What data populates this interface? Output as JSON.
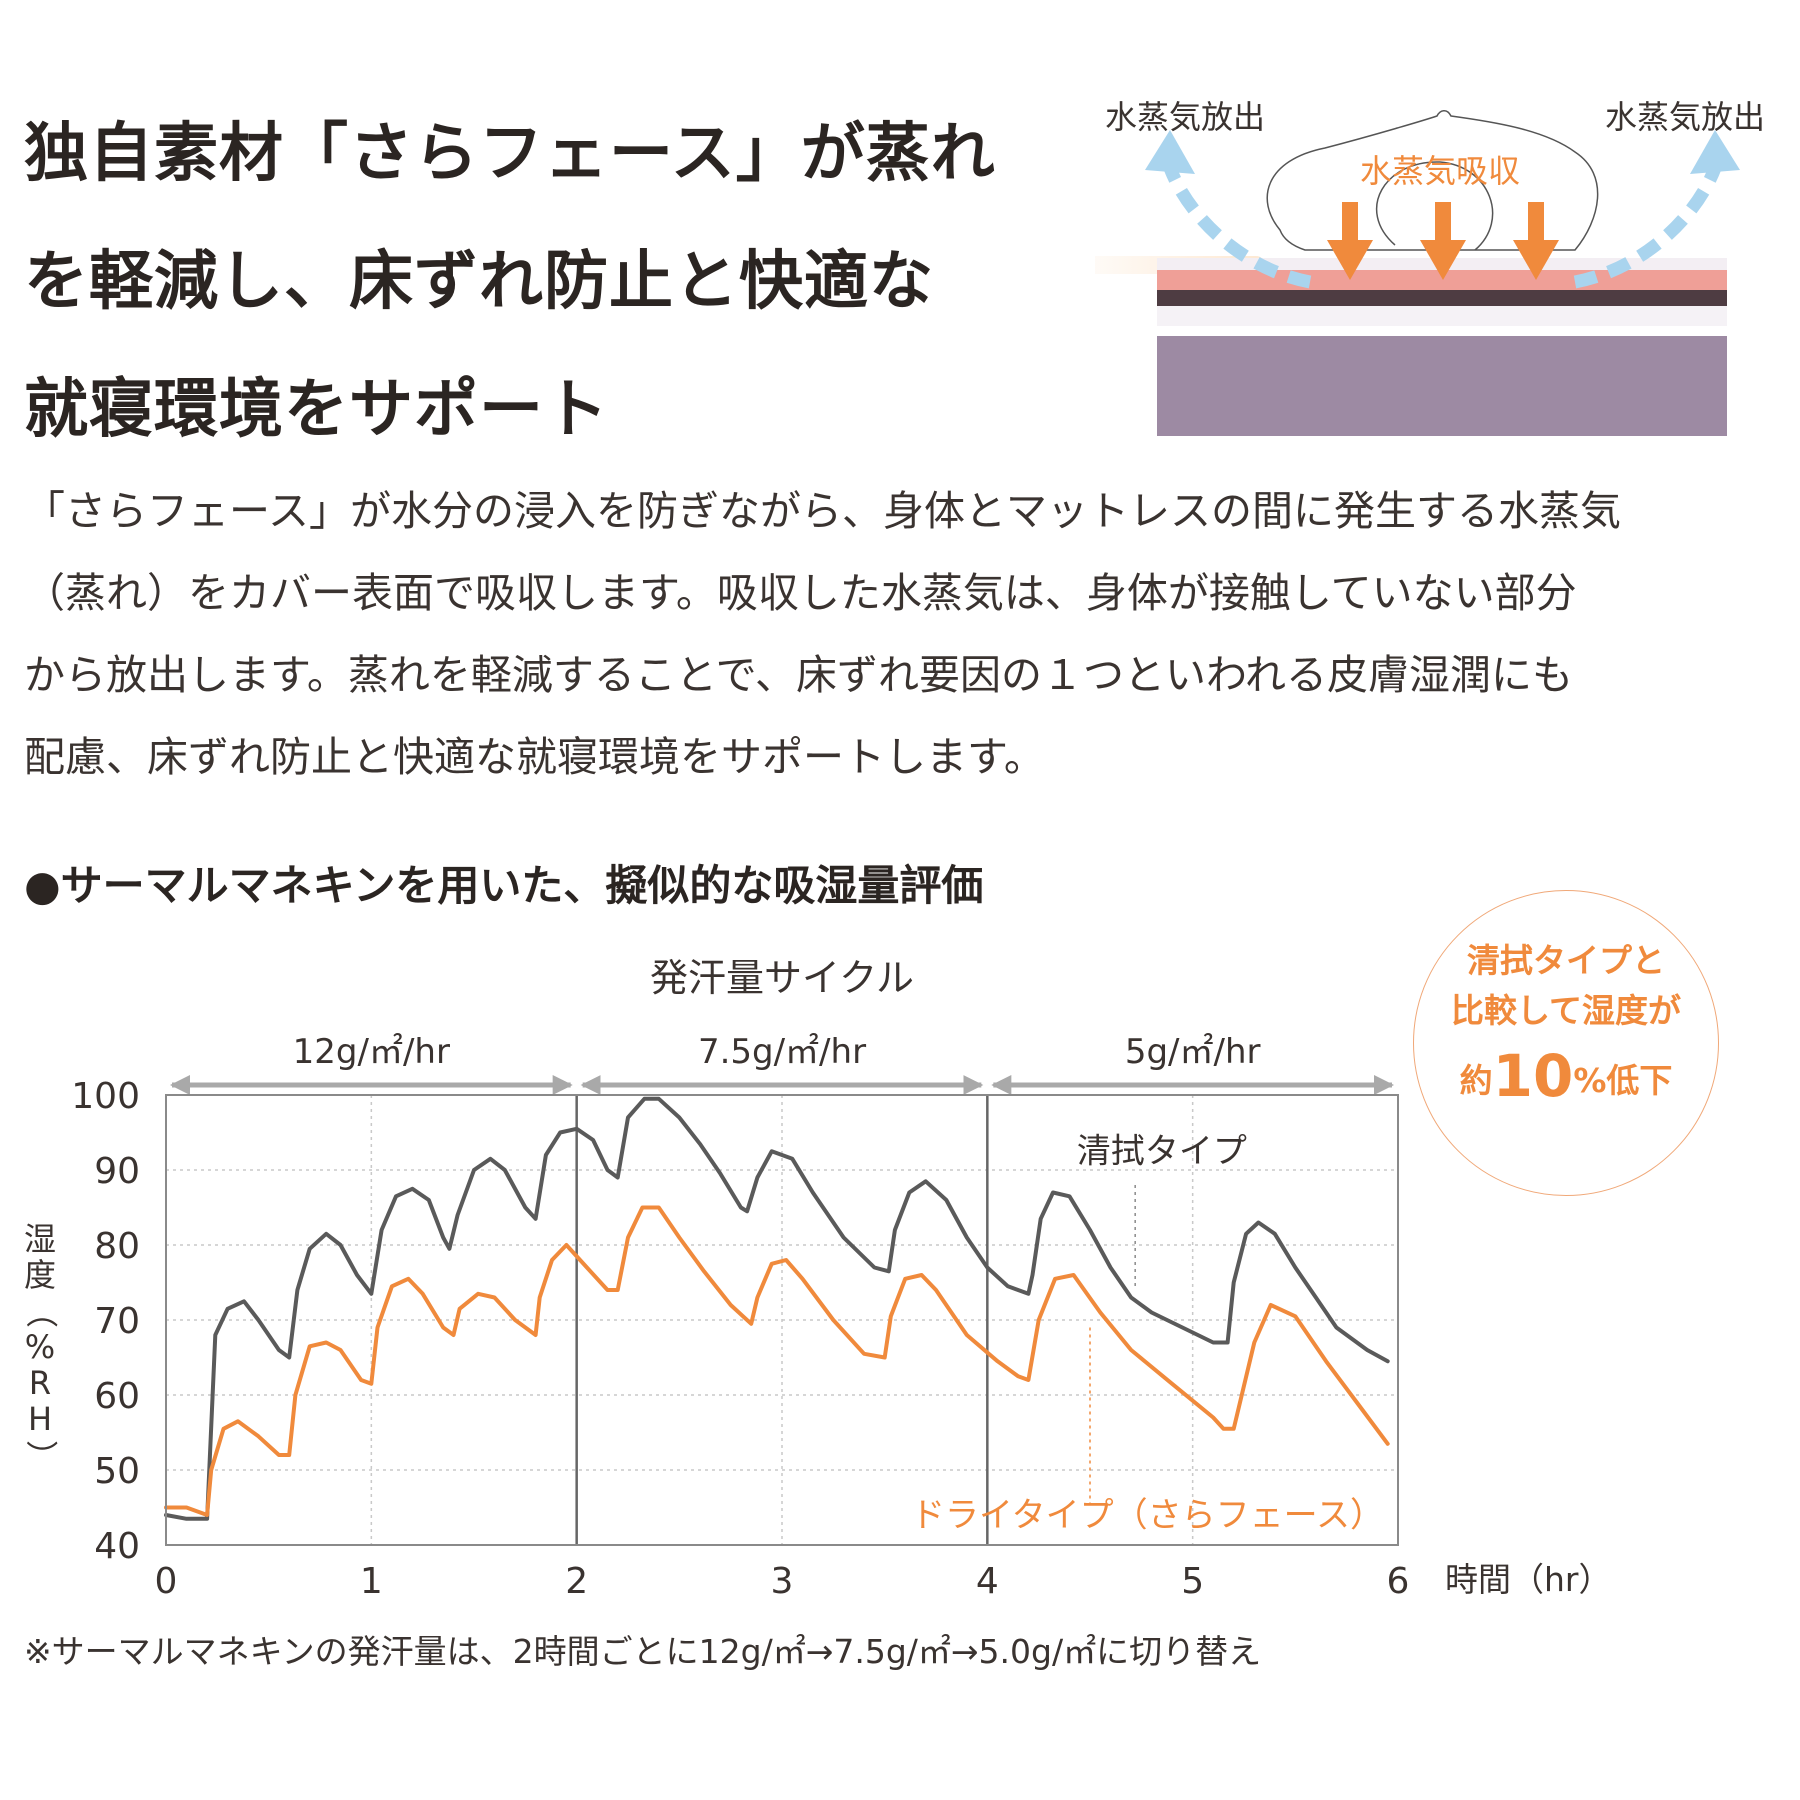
{
  "headline": {
    "line1": "独自素材「さらフェース」が蒸れ",
    "line2": "を軽減し、床ずれ防止と快適な",
    "line3": "就寝環境をサポート"
  },
  "diagram": {
    "release_left": "水蒸気放出",
    "release_right": "水蒸気放出",
    "absorb": "水蒸気吸収",
    "colors": {
      "arrow": "#f08a3c",
      "release": "#a9d4ee",
      "cover": "#ef9f97",
      "mattress": "#9d8aa3"
    }
  },
  "body": {
    "line1": "「さらフェース」が水分の浸入を防ぎながら、身体とマットレスの間に発生する水蒸気",
    "line2": "（蒸れ）をカバー表面で吸収します。吸収した水蒸気は、身体が接触していない部分",
    "line3": "から放出します。蒸れを軽減することで、床ずれ要因の１つといわれる皮膚湿潤にも",
    "line4": "配慮、床ずれ防止と快適な就寝環境をサポートします。"
  },
  "section_title": "●サーマルマネキンを用いた、擬似的な吸湿量評価",
  "callout": {
    "line1": "清拭タイプと",
    "line2": "比較して湿度が",
    "line3_prefix": "約",
    "line3_number": "10",
    "line3_suffix": "%低下"
  },
  "footnote": "※サーマルマネキンの発汗量は、2時間ごとに12g/㎡→7.5g/㎡→5.0g/㎡に切り替え",
  "chart_data": {
    "type": "line",
    "title": "発汗量サイクル",
    "xlabel": "時間（hr）",
    "ylabel": "湿度（%RH）",
    "xlim": [
      0,
      6
    ],
    "ylim": [
      40,
      100
    ],
    "x_ticks": [
      "0",
      "1",
      "2",
      "3",
      "4",
      "5",
      "6"
    ],
    "y_ticks": [
      "40",
      "50",
      "60",
      "70",
      "80",
      "90",
      "100"
    ],
    "grid": true,
    "phases": [
      {
        "label": "12g/㎡/hr",
        "start": 0,
        "end": 2
      },
      {
        "label": "7.5g/㎡/hr",
        "start": 2,
        "end": 4
      },
      {
        "label": "5g/㎡/hr",
        "start": 4,
        "end": 6
      }
    ],
    "series": [
      {
        "name": "清拭タイプ",
        "color": "#5a5a5a",
        "x": [
          0,
          0.1,
          0.2,
          0.24,
          0.3,
          0.38,
          0.45,
          0.55,
          0.6,
          0.64,
          0.7,
          0.78,
          0.85,
          0.93,
          1.0,
          1.05,
          1.12,
          1.2,
          1.28,
          1.35,
          1.38,
          1.42,
          1.5,
          1.58,
          1.65,
          1.75,
          1.8,
          1.85,
          1.92,
          2.0,
          2.08,
          2.15,
          2.2,
          2.25,
          2.33,
          2.4,
          2.5,
          2.6,
          2.7,
          2.8,
          2.83,
          2.88,
          2.95,
          3.05,
          3.15,
          3.3,
          3.45,
          3.52,
          3.55,
          3.62,
          3.7,
          3.8,
          3.9,
          4.0,
          4.1,
          4.2,
          4.22,
          4.26,
          4.32,
          4.4,
          4.5,
          4.6,
          4.7,
          4.8,
          4.95,
          5.1,
          5.17,
          5.2,
          5.26,
          5.32,
          5.4,
          5.5,
          5.6,
          5.7,
          5.85,
          5.95
        ],
        "y": [
          44,
          43.5,
          43.5,
          68,
          71.5,
          72.5,
          70,
          66,
          65,
          74,
          79.5,
          81.5,
          80,
          76,
          73.5,
          82,
          86.5,
          87.5,
          86,
          81,
          79.5,
          84,
          90,
          91.5,
          90,
          85,
          83.5,
          92,
          95,
          95.5,
          94,
          90,
          89,
          97,
          99.5,
          99.5,
          97,
          93.5,
          89.5,
          85,
          84.5,
          89,
          92.5,
          91.5,
          87,
          81,
          77,
          76.5,
          82,
          87,
          88.5,
          86,
          81,
          77,
          74.5,
          73.5,
          76,
          83.5,
          87,
          86.5,
          82,
          77,
          73,
          71,
          69,
          67,
          67,
          75,
          81.5,
          83,
          81.5,
          77,
          73,
          69,
          66,
          64.5
        ]
      },
      {
        "name": "ドライタイプ（さらフェース）",
        "color": "#f08a3c",
        "x": [
          0,
          0.1,
          0.2,
          0.22,
          0.28,
          0.35,
          0.45,
          0.55,
          0.6,
          0.63,
          0.7,
          0.78,
          0.85,
          0.95,
          1.0,
          1.03,
          1.1,
          1.18,
          1.25,
          1.35,
          1.4,
          1.43,
          1.52,
          1.6,
          1.7,
          1.8,
          1.82,
          1.88,
          1.95,
          2.05,
          2.15,
          2.2,
          2.25,
          2.32,
          2.4,
          2.5,
          2.62,
          2.75,
          2.85,
          2.88,
          2.95,
          3.02,
          3.1,
          3.25,
          3.4,
          3.5,
          3.53,
          3.6,
          3.68,
          3.75,
          3.9,
          4.05,
          4.15,
          4.2,
          4.25,
          4.33,
          4.42,
          4.55,
          4.7,
          4.9,
          5.1,
          5.15,
          5.2,
          5.3,
          5.38,
          5.5,
          5.65,
          5.8,
          5.95
        ],
        "y": [
          45,
          45,
          44,
          50,
          55.5,
          56.5,
          54.5,
          52,
          52,
          60,
          66.5,
          67,
          66,
          62,
          61.5,
          69,
          74.5,
          75.5,
          73.5,
          69,
          68,
          71.5,
          73.5,
          73,
          70,
          68,
          73,
          78,
          80,
          77,
          74,
          74,
          81,
          85,
          85,
          81,
          76.5,
          72,
          69.5,
          73,
          77.5,
          78,
          75.5,
          70,
          65.5,
          65,
          70.5,
          75.5,
          76,
          74,
          68,
          64.5,
          62.5,
          62,
          70,
          75.5,
          76,
          71,
          66,
          61.5,
          57,
          55.5,
          55.5,
          67,
          72,
          70.5,
          64.5,
          59,
          53.5
        ]
      }
    ],
    "annotations": [
      {
        "text": "清拭タイプ",
        "color": "#3a3330"
      },
      {
        "text": "ドライタイプ（さらフェース）",
        "color": "#f08a3c"
      }
    ]
  }
}
